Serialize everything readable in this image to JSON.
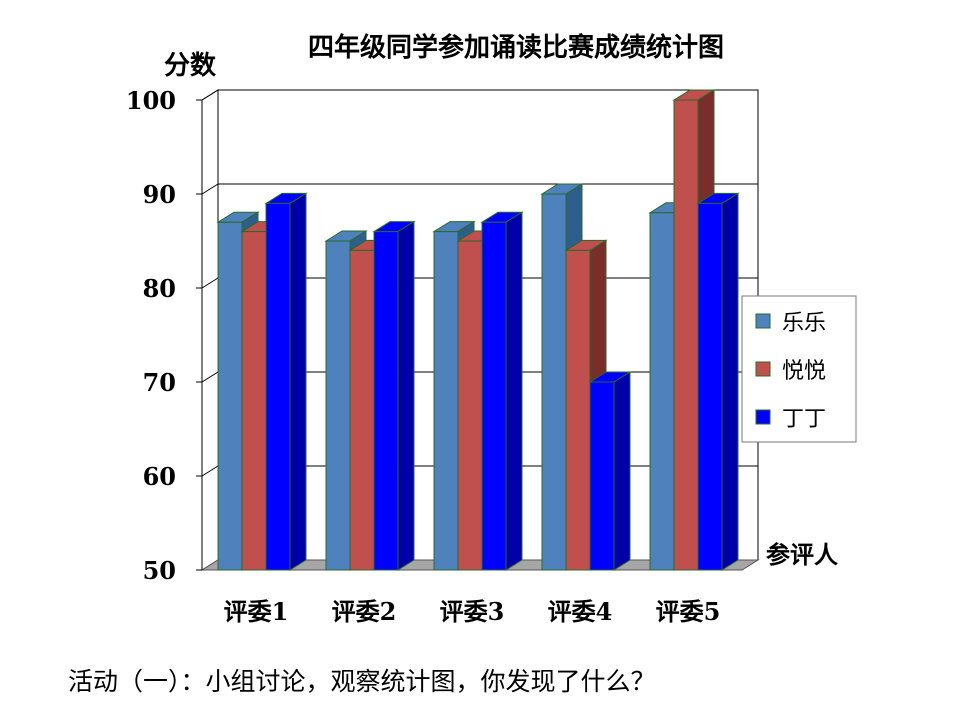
{
  "chart_data": {
    "type": "bar",
    "title": "四年级同学参加诵读比赛成绩统计图",
    "ylabel": "分数",
    "xlabel": "参评人",
    "ylim": [
      50,
      100
    ],
    "yticks": [
      50,
      60,
      70,
      80,
      90,
      100
    ],
    "categories": [
      "评委1",
      "评委2",
      "评委3",
      "评委4",
      "评委5"
    ],
    "series": [
      {
        "name": "乐乐",
        "color": "#4F81BD",
        "side": "#2E5E8C",
        "values": [
          87,
          85,
          86,
          90,
          88
        ]
      },
      {
        "name": "悦悦",
        "color": "#C0504D",
        "side": "#7A2E2C",
        "values": [
          86,
          84,
          85,
          84,
          100
        ]
      },
      {
        "name": "丁丁",
        "color": "#0000FF",
        "side": "#0000A8",
        "values": [
          89,
          86,
          87,
          70,
          89
        ]
      }
    ],
    "grid": true,
    "legend_position": "right"
  },
  "caption": "活动（一）：小组讨论，观察统计图，你发现了什么？"
}
